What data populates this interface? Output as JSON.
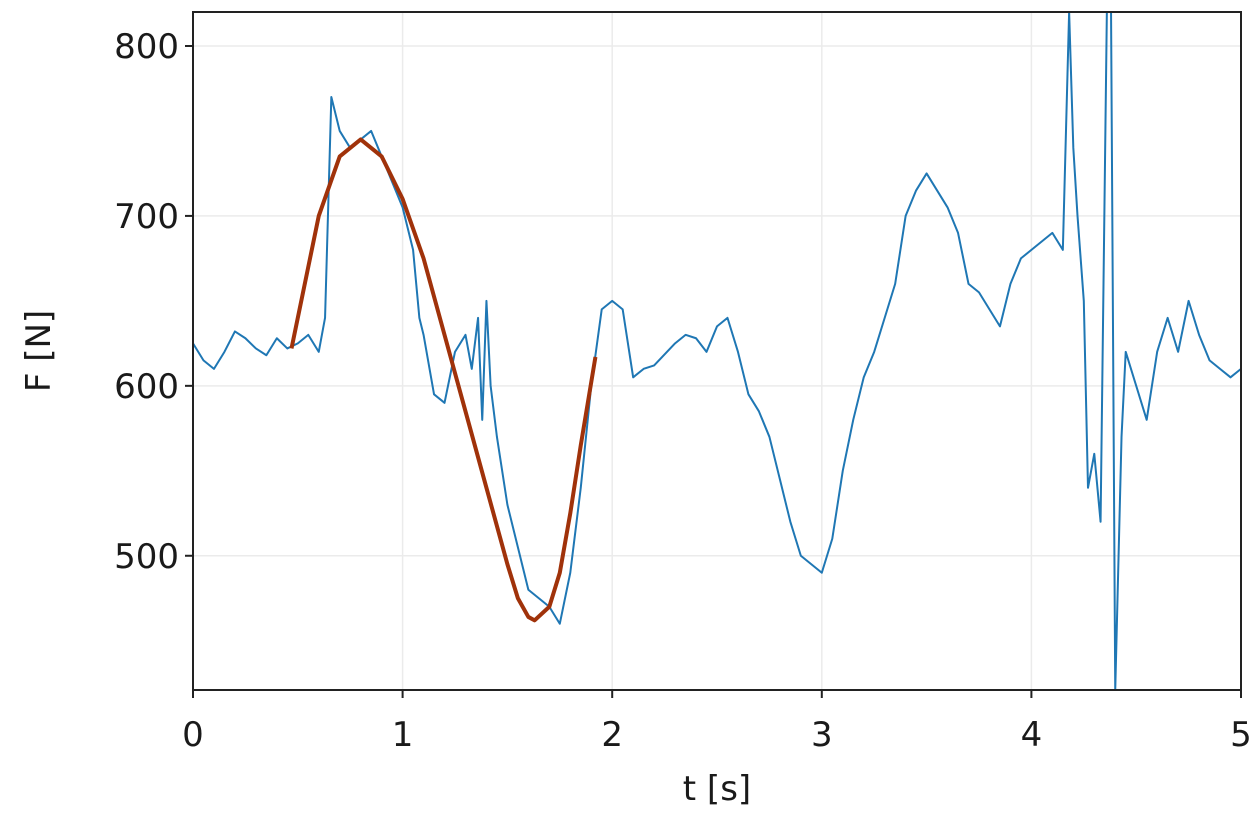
{
  "chart_data": {
    "type": "line",
    "xlabel": "t [s]",
    "ylabel": "F [N]",
    "xlim": [
      0,
      5
    ],
    "ylim": [
      421,
      820
    ],
    "xticks": [
      0,
      1,
      2,
      3,
      4,
      5
    ],
    "yticks": [
      500,
      600,
      700,
      800
    ],
    "grid": true,
    "series": [
      {
        "color": "#1f77b4",
        "x": [
          0,
          0.05,
          0.1,
          0.15,
          0.2,
          0.25,
          0.3,
          0.35,
          0.4,
          0.45,
          0.5,
          0.55,
          0.6,
          0.63,
          0.66,
          0.7,
          0.75,
          0.8,
          0.85,
          0.9,
          0.95,
          1.0,
          1.05,
          1.08,
          1.1,
          1.15,
          1.2,
          1.25,
          1.3,
          1.33,
          1.36,
          1.38,
          1.4,
          1.42,
          1.45,
          1.5,
          1.55,
          1.6,
          1.65,
          1.7,
          1.75,
          1.8,
          1.85,
          1.9,
          1.95,
          2.0,
          2.05,
          2.1,
          2.15,
          2.2,
          2.3,
          2.35,
          2.4,
          2.45,
          2.5,
          2.55,
          2.6,
          2.65,
          2.7,
          2.75,
          2.8,
          2.85,
          2.9,
          2.95,
          3.0,
          3.05,
          3.1,
          3.15,
          3.2,
          3.25,
          3.3,
          3.35,
          3.4,
          3.45,
          3.5,
          3.55,
          3.6,
          3.65,
          3.7,
          3.75,
          3.8,
          3.85,
          3.9,
          3.95,
          4.0,
          4.05,
          4.1,
          4.15,
          4.18,
          4.2,
          4.22,
          4.25,
          4.27,
          4.3,
          4.33,
          4.36,
          4.38,
          4.4,
          4.43,
          4.45,
          4.5,
          4.55,
          4.6,
          4.65,
          4.7,
          4.75,
          4.8,
          4.85,
          4.9,
          4.95,
          5.0
        ],
        "values": [
          625,
          615,
          610,
          620,
          632,
          628,
          622,
          618,
          628,
          622,
          625,
          630,
          620,
          640,
          770,
          750,
          740,
          745,
          750,
          735,
          720,
          705,
          680,
          640,
          630,
          595,
          590,
          620,
          630,
          610,
          640,
          580,
          650,
          600,
          570,
          530,
          505,
          480,
          475,
          470,
          460,
          490,
          540,
          600,
          645,
          650,
          645,
          605,
          610,
          612,
          625,
          630,
          628,
          620,
          635,
          640,
          620,
          595,
          585,
          570,
          545,
          520,
          500,
          495,
          490,
          510,
          550,
          580,
          605,
          620,
          640,
          660,
          700,
          715,
          725,
          715,
          705,
          690,
          660,
          655,
          645,
          635,
          660,
          675,
          680,
          685,
          690,
          680,
          820,
          740,
          700,
          650,
          540,
          560,
          520,
          820,
          820,
          421,
          570,
          620,
          600,
          580,
          620,
          640,
          620,
          650,
          630,
          615,
          610,
          605,
          610
        ]
      },
      {
        "color": "#a0320a",
        "x": [
          0.47,
          0.55,
          0.6,
          0.7,
          0.8,
          0.9,
          1.0,
          1.1,
          1.2,
          1.3,
          1.4,
          1.5,
          1.55,
          1.6,
          1.63,
          1.7,
          1.75,
          1.8,
          1.85,
          1.92
        ],
        "values": [
          622,
          670,
          700,
          735,
          745,
          735,
          710,
          675,
          630,
          585,
          540,
          495,
          475,
          464,
          462,
          470,
          490,
          525,
          565,
          617
        ]
      }
    ]
  }
}
